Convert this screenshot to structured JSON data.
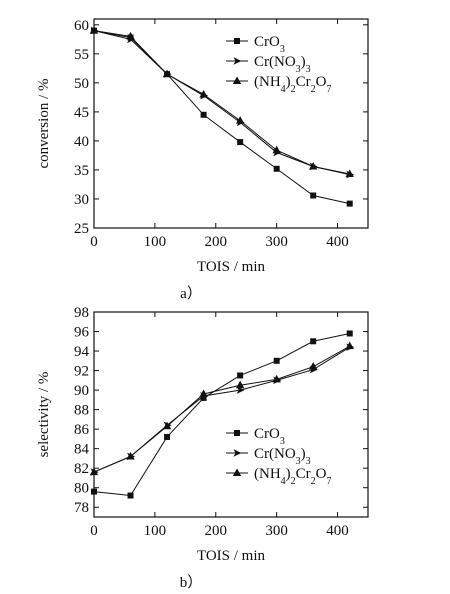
{
  "chart_data": [
    {
      "type": "line",
      "panel_label": "a）",
      "xlabel": "TOIS / min",
      "ylabel": "conversion / %",
      "xlim": [
        0,
        450
      ],
      "ylim": [
        25,
        61
      ],
      "xticks": [
        0,
        100,
        200,
        300,
        400
      ],
      "yticks": [
        25,
        30,
        35,
        40,
        45,
        50,
        55,
        60
      ],
      "legend_position": "top-right",
      "series": [
        {
          "name": "CrO3",
          "marker": "square",
          "x": [
            0,
            60,
            120,
            180,
            240,
            300,
            360,
            420
          ],
          "y": [
            59,
            57.8,
            51.5,
            44.5,
            39.8,
            35.2,
            30.6,
            29.2
          ]
        },
        {
          "name": "Cr(NO3)3",
          "marker": "arrow-right",
          "x": [
            0,
            60,
            120,
            180,
            240,
            300,
            360,
            420
          ],
          "y": [
            59,
            57.5,
            51.5,
            47.8,
            43.2,
            38.0,
            35.6,
            34.2
          ]
        },
        {
          "name": "(NH4)2Cr2O7",
          "marker": "triangle",
          "x": [
            0,
            60,
            120,
            180,
            240,
            300,
            360,
            420
          ],
          "y": [
            59,
            58.0,
            51.5,
            48.0,
            43.5,
            38.4,
            35.6,
            34.3
          ]
        }
      ]
    },
    {
      "type": "line",
      "panel_label": "b）",
      "xlabel": "TOIS / min",
      "ylabel": "selectivity / %",
      "xlim": [
        0,
        450
      ],
      "ylim": [
        77,
        98
      ],
      "xticks": [
        0,
        100,
        200,
        300,
        400
      ],
      "yticks": [
        78,
        80,
        82,
        84,
        86,
        88,
        90,
        92,
        94,
        96,
        98
      ],
      "legend_position": "bottom-right",
      "series": [
        {
          "name": "CrO3",
          "marker": "square",
          "x": [
            0,
            60,
            120,
            180,
            240,
            300,
            360,
            420
          ],
          "y": [
            79.6,
            79.2,
            85.2,
            89.2,
            91.5,
            93.0,
            95.0,
            95.8
          ]
        },
        {
          "name": "Cr(NO3)3",
          "marker": "arrow-right",
          "x": [
            0,
            60,
            120,
            180,
            240,
            300,
            360,
            420
          ],
          "y": [
            81.6,
            83.2,
            86.4,
            89.4,
            90.0,
            91.0,
            92.1,
            94.4
          ]
        },
        {
          "name": "(NH4)2Cr2O7",
          "marker": "triangle",
          "x": [
            0,
            60,
            120,
            180,
            240,
            300,
            360,
            420
          ],
          "y": [
            81.6,
            83.2,
            86.3,
            89.6,
            90.5,
            91.1,
            92.4,
            94.5
          ]
        }
      ]
    }
  ]
}
